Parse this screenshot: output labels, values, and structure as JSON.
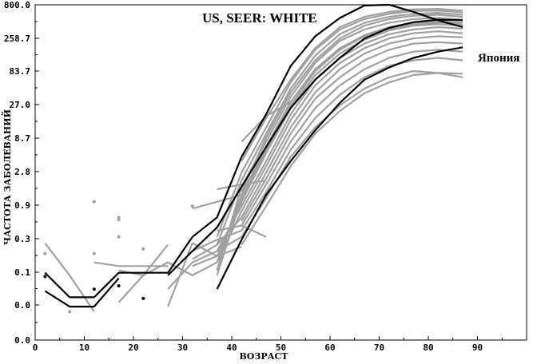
{
  "chart_data": {
    "type": "line",
    "title": "",
    "xlabel": "ВОЗРАСТ",
    "ylabel": "ЧАСТОТА ЗАБОЛЕВАНИЙ",
    "xlim": [
      0,
      100
    ],
    "x_ticks": [
      0,
      10,
      20,
      30,
      40,
      50,
      60,
      70,
      80,
      90
    ],
    "y_ticks": [
      "0.0",
      "0.0",
      "0.1",
      "0.3",
      "0.9",
      "2.8",
      "8.7",
      "27.0",
      "83.7",
      "258.7",
      "800.0"
    ],
    "grid": false,
    "legend": "none",
    "colors": {
      "highlight": "#000000",
      "registry": "#a0a0a0",
      "background": "#ffffff"
    },
    "annotations": [
      {
        "text": "US, SEER: WHITE",
        "anchor_series": "US, SEER: WHITE"
      },
      {
        "text": "Япония",
        "anchor_series": "Япония"
      }
    ],
    "highlighted_series": [
      {
        "name": "US, SEER: WHITE",
        "points": [
          [
            2,
            0.055
          ],
          [
            7,
            0.022
          ],
          [
            12,
            0.022
          ],
          [
            17,
            0.055
          ],
          [
            27,
            0.055
          ],
          [
            32,
            0.2
          ],
          [
            37,
            0.4
          ],
          [
            42,
            3.5
          ],
          [
            47,
            16
          ],
          [
            52,
            90
          ],
          [
            57,
            260
          ],
          [
            62,
            500
          ],
          [
            67,
            780
          ],
          [
            72,
            800
          ],
          [
            77,
            620
          ],
          [
            82,
            460
          ],
          [
            87,
            360
          ]
        ]
      },
      {
        "name": "Япония",
        "points": [
          [
            37,
            0.03
          ],
          [
            42,
            0.18
          ],
          [
            47,
            0.9
          ],
          [
            52,
            3
          ],
          [
            57,
            9
          ],
          [
            62,
            24
          ],
          [
            67,
            55
          ],
          [
            72,
            85
          ],
          [
            77,
            120
          ],
          [
            82,
            150
          ],
          [
            87,
            175
          ]
        ]
      },
      {
        "name": "",
        "points": [
          [
            27,
            0.05
          ],
          [
            32,
            0.12
          ],
          [
            37,
            0.28
          ],
          [
            42,
            1.2
          ],
          [
            47,
            5
          ],
          [
            52,
            20
          ],
          [
            57,
            55
          ],
          [
            62,
            120
          ],
          [
            67,
            240
          ],
          [
            72,
            350
          ],
          [
            77,
            430
          ],
          [
            82,
            470
          ],
          [
            87,
            460
          ]
        ]
      },
      {
        "name": "",
        "points": [
          [
            2,
            0.028
          ],
          [
            7,
            0.015
          ],
          [
            12,
            0.015
          ],
          [
            17,
            0.045
          ]
        ]
      }
    ],
    "registry_series": [
      {
        "name": "",
        "points": [
          [
            37,
            0.06
          ],
          [
            42,
            1.2
          ],
          [
            47,
            6
          ],
          [
            52,
            30
          ],
          [
            57,
            100
          ],
          [
            62,
            220
          ],
          [
            67,
            330
          ],
          [
            72,
            420
          ],
          [
            77,
            480
          ],
          [
            82,
            500
          ],
          [
            87,
            470
          ]
        ]
      },
      {
        "name": "",
        "points": [
          [
            37,
            0.08
          ],
          [
            42,
            0.9
          ],
          [
            47,
            5
          ],
          [
            52,
            25
          ],
          [
            57,
            80
          ],
          [
            62,
            170
          ],
          [
            67,
            270
          ],
          [
            72,
            360
          ],
          [
            77,
            420
          ],
          [
            82,
            440
          ],
          [
            87,
            420
          ]
        ]
      },
      {
        "name": "",
        "points": [
          [
            37,
            0.1
          ],
          [
            42,
            0.7
          ],
          [
            47,
            4
          ],
          [
            52,
            20
          ],
          [
            57,
            65
          ],
          [
            62,
            140
          ],
          [
            67,
            230
          ],
          [
            72,
            320
          ],
          [
            77,
            380
          ],
          [
            82,
            400
          ],
          [
            87,
            380
          ]
        ]
      },
      {
        "name": "",
        "points": [
          [
            37,
            0.12
          ],
          [
            42,
            0.6
          ],
          [
            47,
            3
          ],
          [
            52,
            16
          ],
          [
            57,
            55
          ],
          [
            62,
            120
          ],
          [
            67,
            200
          ],
          [
            72,
            280
          ],
          [
            77,
            330
          ],
          [
            82,
            360
          ],
          [
            87,
            340
          ]
        ]
      },
      {
        "name": "",
        "points": [
          [
            37,
            0.08
          ],
          [
            42,
            0.5
          ],
          [
            47,
            2.5
          ],
          [
            52,
            13
          ],
          [
            57,
            45
          ],
          [
            62,
            100
          ],
          [
            67,
            170
          ],
          [
            72,
            240
          ],
          [
            77,
            290
          ],
          [
            82,
            310
          ],
          [
            87,
            290
          ]
        ]
      },
      {
        "name": "",
        "points": [
          [
            42,
            0.4
          ],
          [
            47,
            2
          ],
          [
            52,
            10
          ],
          [
            57,
            35
          ],
          [
            62,
            80
          ],
          [
            67,
            140
          ],
          [
            72,
            200
          ],
          [
            77,
            240
          ],
          [
            82,
            260
          ],
          [
            87,
            250
          ]
        ]
      },
      {
        "name": "",
        "points": [
          [
            42,
            0.35
          ],
          [
            47,
            1.6
          ],
          [
            52,
            8
          ],
          [
            57,
            28
          ],
          [
            62,
            60
          ],
          [
            67,
            110
          ],
          [
            72,
            160
          ],
          [
            77,
            200
          ],
          [
            82,
            210
          ],
          [
            87,
            200
          ]
        ]
      },
      {
        "name": "",
        "points": [
          [
            42,
            0.3
          ],
          [
            47,
            1.3
          ],
          [
            52,
            6
          ],
          [
            57,
            20
          ],
          [
            62,
            45
          ],
          [
            67,
            80
          ],
          [
            72,
            120
          ],
          [
            77,
            150
          ],
          [
            82,
            160
          ],
          [
            87,
            150
          ]
        ]
      },
      {
        "name": "",
        "points": [
          [
            42,
            0.25
          ],
          [
            47,
            1
          ],
          [
            52,
            4.5
          ],
          [
            57,
            14
          ],
          [
            62,
            32
          ],
          [
            67,
            60
          ],
          [
            72,
            90
          ],
          [
            77,
            110
          ],
          [
            82,
            120
          ],
          [
            87,
            110
          ]
        ]
      },
      {
        "name": "",
        "points": [
          [
            42,
            0.2
          ],
          [
            47,
            0.8
          ],
          [
            52,
            3.5
          ],
          [
            57,
            10
          ],
          [
            62,
            22
          ],
          [
            67,
            40
          ],
          [
            72,
            60
          ],
          [
            77,
            75
          ],
          [
            82,
            70
          ],
          [
            87,
            60
          ]
        ]
      },
      {
        "name": "",
        "points": [
          [
            37,
            0.15
          ],
          [
            42,
            1.5
          ],
          [
            47,
            8
          ],
          [
            52,
            40
          ],
          [
            57,
            130
          ],
          [
            62,
            280
          ],
          [
            67,
            420
          ],
          [
            72,
            520
          ],
          [
            77,
            580
          ],
          [
            82,
            600
          ],
          [
            87,
            560
          ]
        ]
      },
      {
        "name": "",
        "points": [
          [
            37,
            0.2
          ],
          [
            42,
            2
          ],
          [
            47,
            10
          ],
          [
            52,
            50
          ],
          [
            57,
            160
          ],
          [
            62,
            330
          ],
          [
            67,
            480
          ],
          [
            72,
            580
          ],
          [
            77,
            640
          ],
          [
            82,
            650
          ],
          [
            87,
            610
          ]
        ]
      },
      {
        "name": "",
        "points": [
          [
            37,
            0.05
          ],
          [
            42,
            0.8
          ],
          [
            47,
            4.5
          ],
          [
            52,
            22
          ],
          [
            57,
            75
          ],
          [
            62,
            160
          ],
          [
            67,
            260
          ],
          [
            72,
            340
          ],
          [
            77,
            400
          ],
          [
            82,
            420
          ],
          [
            87,
            400
          ]
        ]
      },
      {
        "name": "",
        "points": [
          [
            42,
            1
          ],
          [
            47,
            7
          ],
          [
            52,
            35
          ],
          [
            57,
            110
          ],
          [
            62,
            240
          ],
          [
            67,
            380
          ],
          [
            72,
            480
          ],
          [
            77,
            540
          ],
          [
            82,
            560
          ],
          [
            87,
            520
          ]
        ]
      },
      {
        "name": "",
        "points": [
          [
            42,
            0.15
          ],
          [
            47,
            0.6
          ],
          [
            52,
            2.5
          ],
          [
            57,
            8
          ],
          [
            62,
            18
          ],
          [
            67,
            34
          ],
          [
            72,
            50
          ],
          [
            77,
            65
          ],
          [
            82,
            70
          ],
          [
            87,
            68
          ]
        ]
      },
      {
        "name": "",
        "points": [
          [
            42,
            3
          ],
          [
            47,
            14
          ],
          [
            52,
            55
          ],
          [
            57,
            170
          ],
          [
            62,
            360
          ],
          [
            67,
            520
          ],
          [
            72,
            620
          ],
          [
            77,
            680
          ],
          [
            82,
            690
          ],
          [
            87,
            650
          ]
        ]
      },
      {
        "name": "",
        "points": [
          [
            2,
            0.16
          ],
          [
            7,
            0.05
          ],
          [
            12,
            0.012
          ]
        ]
      },
      {
        "name": "",
        "points": [
          [
            17,
            0.018
          ],
          [
            22,
            0.05
          ],
          [
            27,
            0.15
          ]
        ]
      },
      {
        "name": "",
        "points": [
          [
            12,
            0.08
          ],
          [
            17,
            0.07
          ],
          [
            22,
            0.07
          ],
          [
            27,
            0.07
          ]
        ]
      },
      {
        "name": "",
        "points": [
          [
            17,
            0.06
          ],
          [
            22,
            0.05
          ],
          [
            27,
            0.08
          ],
          [
            32,
            0.05
          ],
          [
            37,
            0.08
          ]
        ]
      },
      {
        "name": "",
        "points": [
          [
            27,
            0.015
          ],
          [
            32,
            0.16
          ],
          [
            37,
            0.1
          ]
        ]
      },
      {
        "name": "",
        "points": [
          [
            27,
            0.03
          ],
          [
            32,
            0.08
          ],
          [
            37,
            0.12
          ],
          [
            42,
            0.2
          ]
        ]
      },
      {
        "name": "",
        "points": [
          [
            32,
            0.09
          ],
          [
            37,
            0.15
          ],
          [
            42,
            0.4
          ]
        ]
      },
      {
        "name": "",
        "points": [
          [
            32,
            0.12
          ],
          [
            37,
            0.18
          ],
          [
            42,
            0.25
          ]
        ]
      },
      {
        "name": "",
        "points": [
          [
            32,
            0.07
          ],
          [
            37,
            0.1
          ],
          [
            42,
            0.14
          ]
        ]
      },
      {
        "name": "",
        "points": [
          [
            37,
            0.25
          ],
          [
            42,
            0.3
          ],
          [
            47,
            0.2
          ]
        ]
      },
      {
        "name": "",
        "points": [
          [
            37,
            1.1
          ],
          [
            42,
            1.3
          ],
          [
            47,
            1.5
          ]
        ]
      },
      {
        "name": "",
        "points": [
          [
            32,
            0.55
          ],
          [
            37,
            0.7
          ],
          [
            42,
            0.9
          ]
        ]
      },
      {
        "name": "",
        "points": [
          [
            42,
            6
          ],
          [
            47,
            15
          ],
          [
            52,
            25
          ]
        ]
      }
    ],
    "black_points": [
      [
        2,
        0.048
      ],
      [
        12,
        0.03
      ],
      [
        17,
        0.034
      ],
      [
        22,
        0.021
      ]
    ],
    "gray_points": [
      [
        2,
        0.11
      ],
      [
        7,
        0.012
      ],
      [
        12,
        0.7
      ],
      [
        12,
        0.11
      ],
      [
        17,
        0.4
      ],
      [
        17,
        0.2
      ],
      [
        17,
        0.37
      ],
      [
        22,
        0.13
      ],
      [
        32,
        0.6
      ]
    ]
  }
}
